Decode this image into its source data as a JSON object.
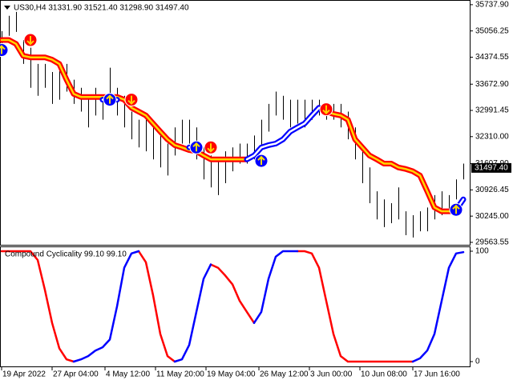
{
  "chart_data": [
    {
      "type": "price",
      "title": "US30,H4  31331.90 31521.40 31298.90 31497.40",
      "x": [
        0,
        3,
        6,
        9,
        12,
        15,
        18,
        21,
        24,
        27,
        30,
        33,
        36,
        39,
        42,
        45,
        48,
        51,
        54,
        57,
        60,
        63,
        66,
        69,
        72,
        75,
        78,
        81,
        84,
        87,
        90,
        93,
        96,
        99,
        102,
        105,
        108,
        111,
        114,
        117,
        120,
        123,
        126,
        129,
        132,
        135,
        138,
        141,
        144,
        147,
        150,
        153,
        156,
        159,
        162,
        165,
        168,
        171,
        174,
        177,
        180,
        183,
        186,
        189,
        192
      ],
      "high": [
        35050,
        35450,
        35550,
        34820,
        34620,
        34200,
        34200,
        33990,
        34100,
        34200,
        33790,
        33580,
        33370,
        33580,
        33370,
        34100,
        33580,
        33370,
        32960,
        32750,
        32750,
        32550,
        32340,
        32130,
        32550,
        32750,
        32750,
        32550,
        32030,
        31820,
        31720,
        31930,
        32030,
        32130,
        32130,
        32340,
        32750,
        33160,
        33480,
        33370,
        33270,
        33270,
        33270,
        33270,
        33270,
        33160,
        33160,
        33160,
        32960,
        32550,
        31930,
        31510,
        30890,
        30680,
        30580,
        30990,
        30370,
        30270,
        30370,
        30470,
        30790,
        30890,
        30790,
        31200,
        31610
      ],
      "low": [
        34620,
        34930,
        35030,
        34200,
        33580,
        33370,
        33580,
        33160,
        33270,
        33480,
        33160,
        32960,
        32550,
        32860,
        32750,
        33160,
        32860,
        32550,
        32240,
        32030,
        31930,
        31720,
        31510,
        31300,
        31820,
        32130,
        32130,
        31720,
        31200,
        30990,
        30790,
        31100,
        31410,
        31610,
        31610,
        31720,
        32030,
        32440,
        32860,
        32750,
        32550,
        32650,
        32550,
        32750,
        32860,
        32750,
        32750,
        32550,
        32240,
        31720,
        31100,
        30580,
        30160,
        29960,
        30060,
        30160,
        29750,
        29690,
        29850,
        29850,
        30160,
        30270,
        30370,
        30680,
        31200
      ],
      "bar_color": "#000000",
      "series": [
        {
          "color": "#ff0000",
          "inner_color": "#ffd700",
          "values": [
            34820,
            34820,
            34720,
            34410,
            34370,
            34370,
            34370,
            34310,
            34200,
            33790,
            33420,
            33340,
            33340,
            33340,
            33340,
            33340,
            33340,
            33270,
            33060,
            32960,
            32860,
            32650,
            32440,
            32240,
            32090,
            32030,
            31960,
            31930,
            31820,
            31720,
            31720,
            31720,
            31720,
            31720,
            31720,
            null,
            null,
            null,
            null,
            null,
            null,
            null,
            null,
            null,
            33060,
            32960,
            32900,
            32860,
            32750,
            32240,
            32030,
            31820,
            31720,
            31610,
            31610,
            31510,
            31470,
            31410,
            31300,
            30890,
            30470,
            30370,
            30370,
            30370,
            null
          ]
        },
        {
          "color": "#0000ff",
          "inner_color": "#ffffff",
          "values": [
            34560,
            null,
            null,
            null,
            null,
            null,
            null,
            null,
            null,
            null,
            null,
            null,
            null,
            null,
            33270,
            33270,
            33270,
            null,
            null,
            null,
            null,
            null,
            null,
            null,
            null,
            null,
            32030,
            32030,
            null,
            null,
            null,
            null,
            null,
            null,
            31720,
            31820,
            32030,
            32090,
            32130,
            32240,
            32440,
            32550,
            32650,
            32860,
            33060,
            null,
            null,
            null,
            null,
            null,
            null,
            null,
            null,
            null,
            null,
            null,
            null,
            null,
            null,
            null,
            null,
            null,
            null,
            30410,
            30680
          ]
        }
      ],
      "signals": {
        "up": {
          "color": "#0000ff",
          "arrow_color": "#ffe000",
          "x": [
            0,
            45,
            81,
            108,
            189
          ],
          "values": [
            34560,
            33270,
            32030,
            31680,
            30410
          ]
        },
        "down": {
          "color": "#ff0000",
          "arrow_color": "#ffd000",
          "x": [
            12,
            54,
            87,
            135
          ],
          "values": [
            34820,
            33270,
            32030,
            33020
          ]
        }
      },
      "last_price": {
        "value": 31497.4,
        "label": "31497.40"
      },
      "xlim": [
        0,
        194
      ],
      "ylim": [
        29500,
        35860
      ],
      "yticks": [
        {
          "value": 35737.9,
          "label": "35737.90"
        },
        {
          "value": 35056.25,
          "label": "35056.25"
        },
        {
          "value": 34374.55,
          "label": "34374.55"
        },
        {
          "value": 33672.9,
          "label": "33672.90"
        },
        {
          "value": 32991.45,
          "label": "32991.45"
        },
        {
          "value": 32310,
          "label": "32310.00"
        },
        {
          "value": 31607.9,
          "label": "31607.90"
        },
        {
          "value": 30926.45,
          "label": "30926.45"
        },
        {
          "value": 30245,
          "label": "30245.00"
        },
        {
          "value": 29563.55,
          "label": "29563.55"
        }
      ]
    },
    {
      "type": "line",
      "title": "Compound Cyclicality 99.10 99.10",
      "x": [
        0,
        3,
        6,
        9,
        12,
        15,
        18,
        21,
        24,
        27,
        30,
        33,
        36,
        39,
        42,
        45,
        48,
        51,
        54,
        57,
        60,
        63,
        66,
        69,
        72,
        75,
        78,
        81,
        84,
        87,
        90,
        93,
        96,
        99,
        102,
        105,
        108,
        111,
        114,
        117,
        120,
        123,
        126,
        129,
        132,
        135,
        138,
        141,
        144,
        147,
        150,
        153,
        156,
        159,
        162,
        165,
        168,
        171,
        174,
        177,
        180,
        183,
        186,
        189,
        192
      ],
      "series": [
        {
          "color": "#ff0000",
          "values": [
            100,
            100,
            100,
            100,
            100,
            92,
            65,
            35,
            12,
            2,
            0,
            null,
            null,
            null,
            null,
            null,
            null,
            null,
            null,
            100,
            90,
            60,
            25,
            5,
            0,
            null,
            null,
            null,
            null,
            88,
            85,
            78,
            70,
            55,
            45,
            35,
            null,
            null,
            null,
            null,
            null,
            100,
            100,
            98,
            85,
            55,
            25,
            5,
            0,
            0,
            0,
            0,
            0,
            0,
            0,
            0,
            0,
            0,
            null,
            null,
            null,
            null,
            null,
            null,
            null
          ]
        },
        {
          "color": "#0000ff",
          "values": [
            null,
            null,
            null,
            null,
            null,
            null,
            null,
            null,
            null,
            null,
            0,
            2,
            5,
            10,
            13,
            20,
            50,
            85,
            98,
            100,
            null,
            null,
            null,
            null,
            0,
            2,
            15,
            45,
            75,
            88,
            null,
            null,
            null,
            null,
            null,
            35,
            45,
            75,
            95,
            100,
            100,
            100,
            null,
            null,
            null,
            null,
            null,
            null,
            null,
            null,
            null,
            null,
            null,
            null,
            null,
            null,
            null,
            0,
            3,
            10,
            25,
            55,
            85,
            98,
            99.1
          ]
        }
      ],
      "xlim": [
        0,
        194
      ],
      "ylim": [
        0,
        100
      ],
      "yticks": [
        100,
        0
      ],
      "xticks": [
        {
          "value": 0,
          "label": "19 Apr 2022"
        },
        {
          "value": 21,
          "label": "27 Apr 04:00"
        },
        {
          "value": 43,
          "label": "4 May 12:00"
        },
        {
          "value": 64,
          "label": "11 May 20:00"
        },
        {
          "value": 85,
          "label": "19 May 04:00"
        },
        {
          "value": 107,
          "label": "26 May 12:00"
        },
        {
          "value": 128,
          "label": "3 Jun 00:00"
        },
        {
          "value": 149,
          "label": "10 Jun 08:00"
        },
        {
          "value": 171,
          "label": "17 Jun 16:00"
        }
      ]
    }
  ]
}
